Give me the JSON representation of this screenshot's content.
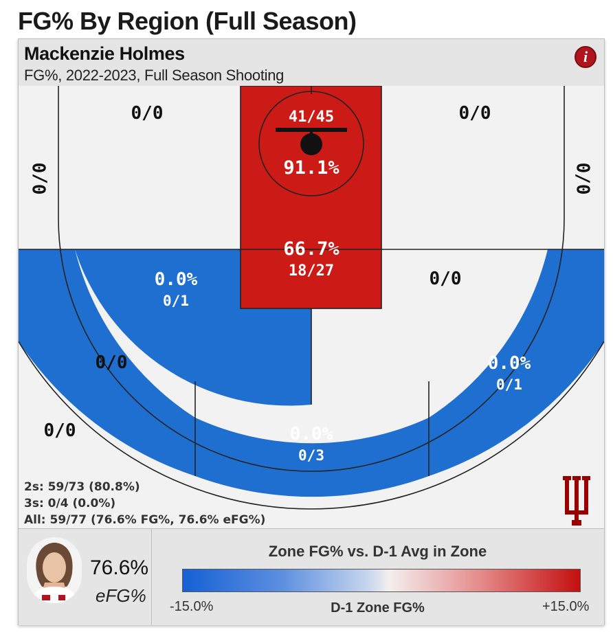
{
  "page_title": "FG% By Region (Full Season)",
  "player_name": "Mackenzie Holmes",
  "subtitle": "FG%, 2022-2023, Full Season Shooting",
  "info_icon": "info-icon",
  "totals": {
    "twos": "2s: 59/73 (80.8%)",
    "threes": "3s: 0/4 (0.0%)",
    "all": "All: 59/77 (76.6% FG%, 76.6% eFG%)"
  },
  "efg": {
    "value": "76.6%",
    "label": "eFG%"
  },
  "legend": {
    "title": "Zone FG% vs. D-1 Avg in Zone",
    "min_label": "-15.0%",
    "max_label": "+15.0%",
    "axis_label": "D-1 Zone FG%",
    "colors": [
      "#1560d4",
      "#f4efef",
      "#c40f0f"
    ]
  },
  "colors": {
    "hot": "#cc1a16",
    "cold": "#1f6fd1",
    "neutral": "#f2f2f2",
    "brand": "#990000"
  },
  "chart_data": {
    "type": "heatmap",
    "title": "FG% By Region (Full Season)",
    "zones": [
      {
        "zone": "restricted area",
        "made": 41,
        "att": 45,
        "pct": "91.1%",
        "label": "41/45",
        "pct_label": "91.1%",
        "color": "hot"
      },
      {
        "zone": "paint (non-RA)",
        "made": 18,
        "att": 27,
        "pct": "66.7%",
        "label": "18/27",
        "pct_label": "66.7%",
        "color": "hot"
      },
      {
        "zone": "mid-range left elbow",
        "made": 0,
        "att": 1,
        "pct": "0.0%",
        "label": "0/1",
        "pct_label": "0.0%",
        "color": "cold"
      },
      {
        "zone": "mid-range right elbow",
        "made": 0,
        "att": 0,
        "label": "0/0",
        "color": "neutral"
      },
      {
        "zone": "mid-range left baseline",
        "made": 0,
        "att": 0,
        "label": "0/0",
        "color": "neutral"
      },
      {
        "zone": "mid-range right baseline",
        "made": 0,
        "att": 0,
        "label": "0/0",
        "color": "neutral"
      },
      {
        "zone": "mid-range left wing",
        "made": 0,
        "att": 0,
        "label": "0/0",
        "color": "neutral"
      },
      {
        "zone": "three left corner",
        "made": 0,
        "att": 0,
        "label": "0/0",
        "color": "neutral"
      },
      {
        "zone": "three right corner",
        "made": 0,
        "att": 0,
        "label": "0/0",
        "color": "neutral"
      },
      {
        "zone": "three left wing",
        "made": 0,
        "att": 0,
        "label": "0/0",
        "color": "neutral"
      },
      {
        "zone": "three top of key",
        "made": 0,
        "att": 3,
        "pct": "0.0%",
        "label": "0/3",
        "pct_label": "0.0%",
        "color": "cold"
      },
      {
        "zone": "three right wing",
        "made": 0,
        "att": 1,
        "pct": "0.0%",
        "label": "0/1",
        "pct_label": "0.0%",
        "color": "cold"
      }
    ]
  }
}
